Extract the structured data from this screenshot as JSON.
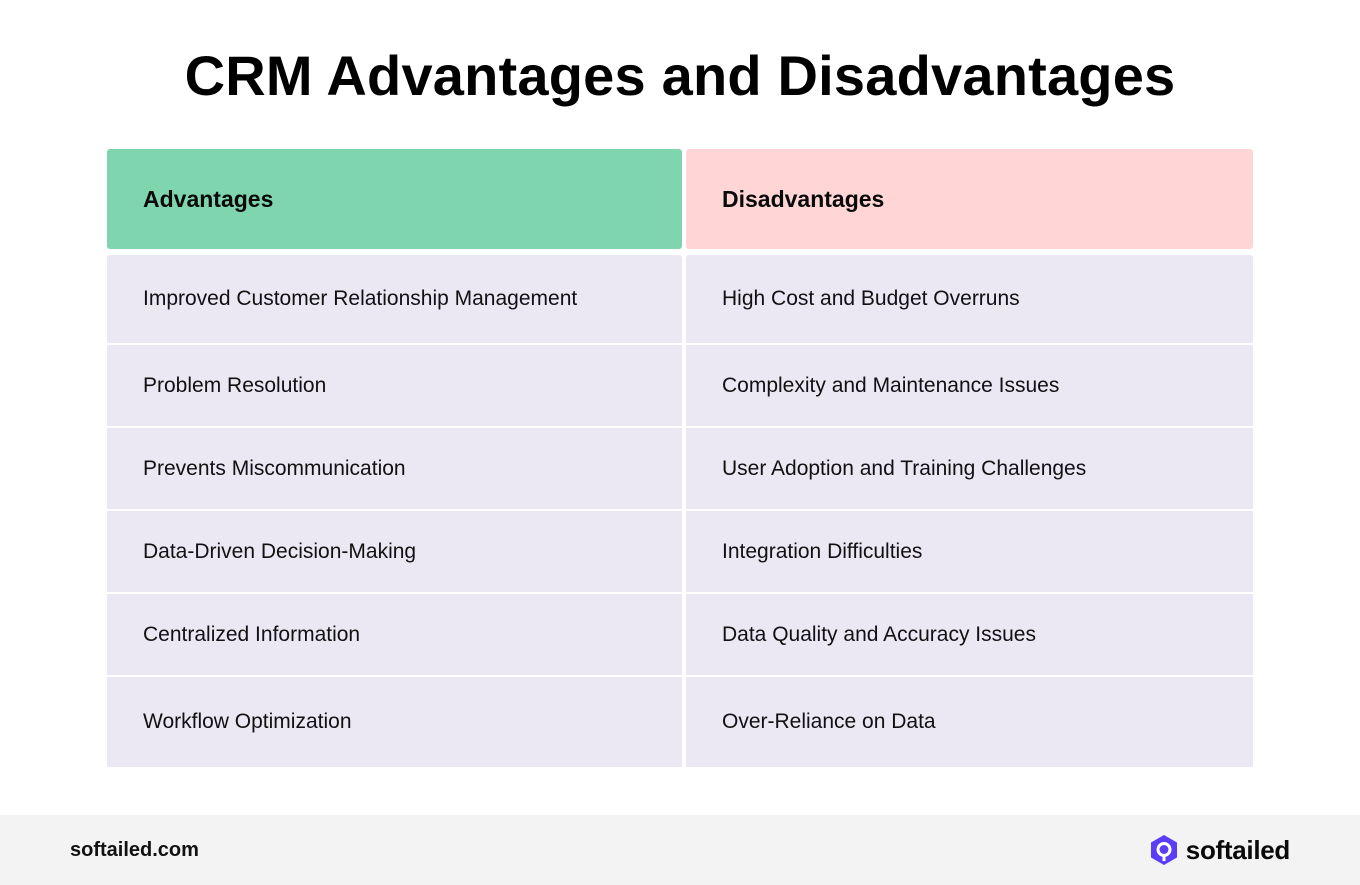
{
  "title": "CRM Advantages and Disadvantages",
  "table": {
    "advantages": {
      "header": "Advantages",
      "header_color": "#7fd6ae",
      "items": [
        "Improved Customer Relationship Management",
        "Problem Resolution",
        "Prevents Miscommunication",
        "Data-Driven Decision-Making",
        "Centralized Information",
        "Workflow Optimization"
      ]
    },
    "disadvantages": {
      "header": "Disadvantages",
      "header_color": "#ffd5d6",
      "items": [
        "High Cost and Budget Overruns",
        "Complexity and Maintenance Issues",
        "User Adoption and Training Challenges",
        "Integration Difficulties",
        "Data Quality and Accuracy Issues",
        "Over-Reliance on Data"
      ]
    },
    "row_color": "#ebe8f3"
  },
  "footer": {
    "url": "softailed.com",
    "brand_name": "softailed",
    "brand_icon": "softailed-logo-icon",
    "brand_color": "#5b3df5"
  }
}
